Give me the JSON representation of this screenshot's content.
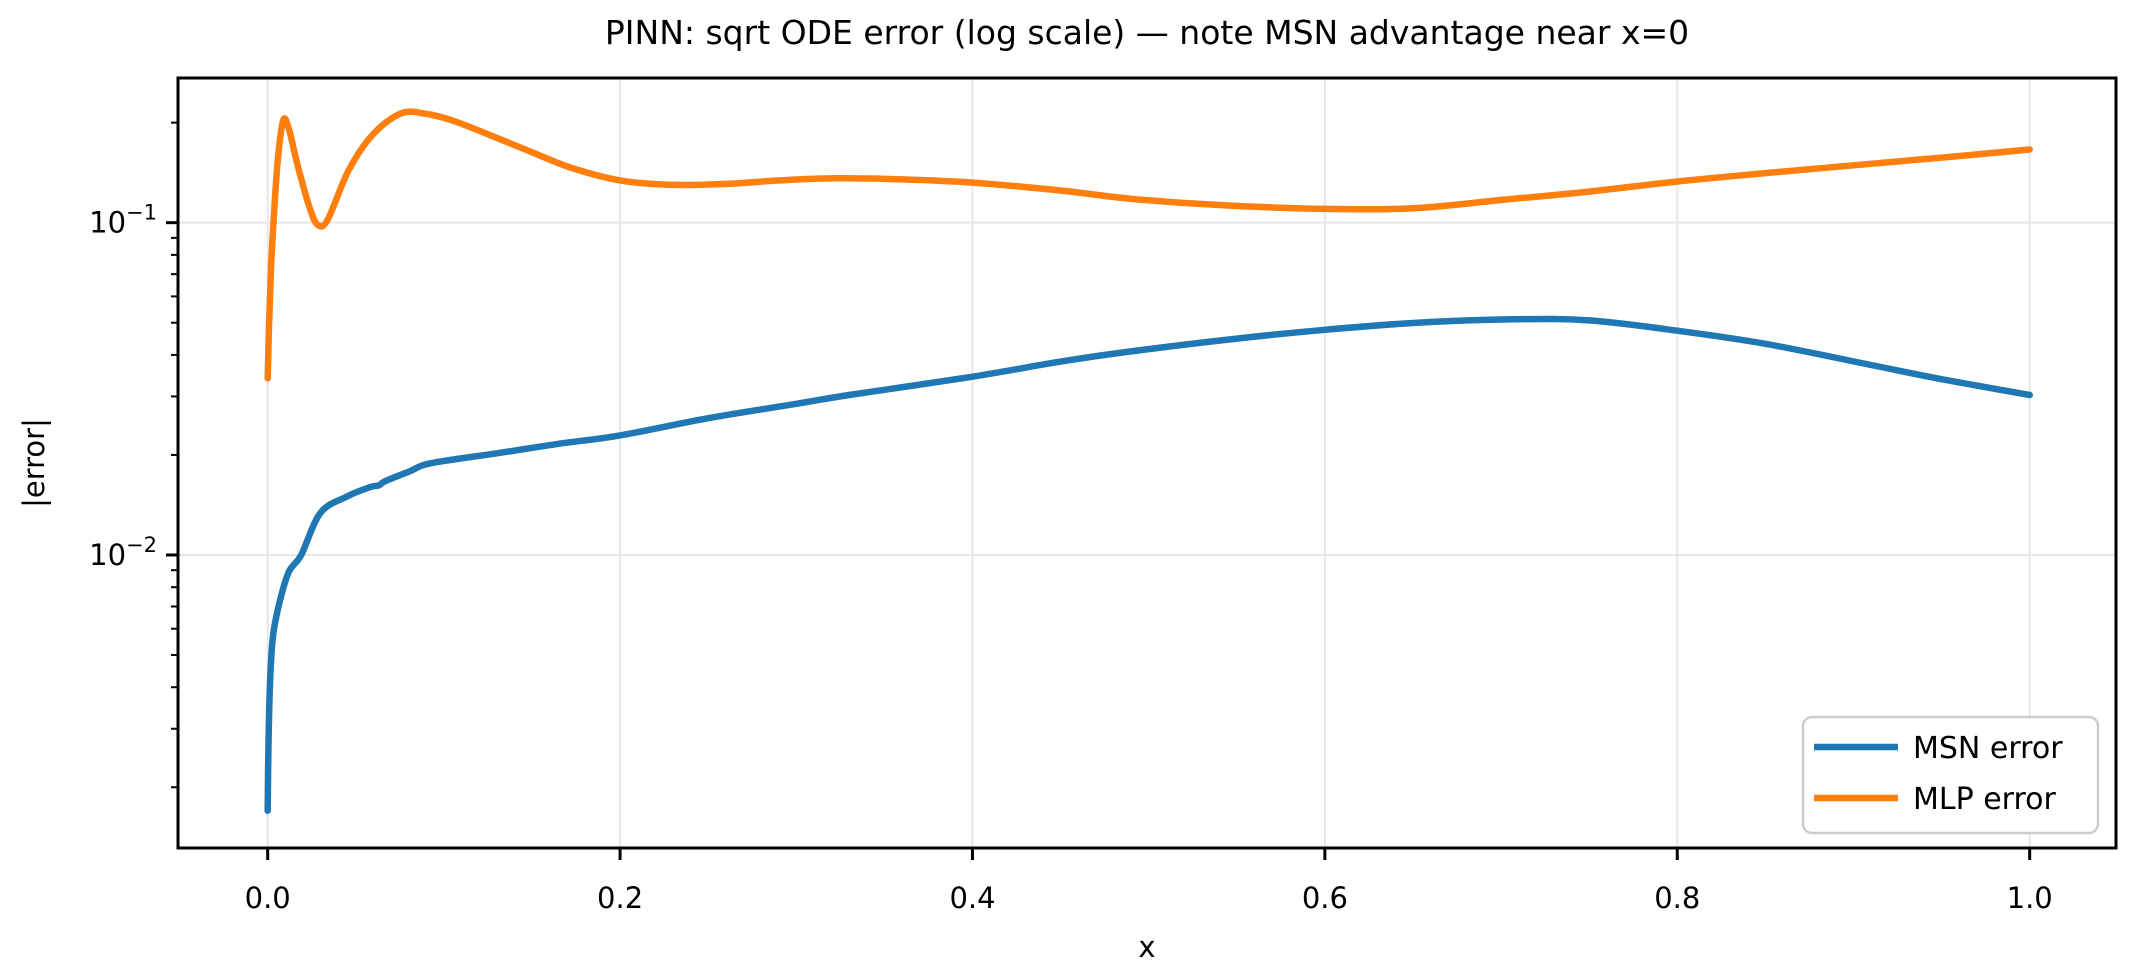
{
  "colors": {
    "background": "#ffffff",
    "grid": "#e7e7e7",
    "axis": "#000000",
    "legend_border": "#cccccc",
    "series_blue": "#1f77b4",
    "series_orange": "#ff7f0e"
  },
  "chart_data": {
    "type": "line",
    "title": "PINN: sqrt ODE error (log scale) — note MSN advantage near x=0",
    "xlabel": "x",
    "ylabel": "|error|",
    "grid": true,
    "y_scale": "log",
    "xlim": [
      -0.0509,
      1.049
    ],
    "ylim": [
      0.001313,
      0.2725
    ],
    "x_ticks": [
      0.0,
      0.2,
      0.4,
      0.6,
      0.8,
      1.0
    ],
    "x_tick_labels": [
      "0.0",
      "0.2",
      "0.4",
      "0.6",
      "0.8",
      "1.0"
    ],
    "y_major_ticks": [
      {
        "value": 0.1,
        "base": "10",
        "exp": "−1"
      },
      {
        "value": 0.01,
        "base": "10",
        "exp": "−2"
      }
    ],
    "y_minor_ticks": [
      0.2,
      0.09,
      0.08,
      0.07,
      0.06,
      0.05,
      0.04,
      0.03,
      0.02,
      0.009,
      0.008,
      0.007,
      0.006,
      0.005,
      0.004,
      0.003,
      0.002
    ],
    "legend": {
      "location": "lower right",
      "entries": [
        {
          "label": "MSN error",
          "color": "#1f77b4"
        },
        {
          "label": "MLP error",
          "color": "#ff7f0e"
        }
      ]
    },
    "series": [
      {
        "name": "MSN error",
        "color": "#1f77b4",
        "points": [
          [
            0.0,
            0.0017
          ],
          [
            0.0004,
            0.0026
          ],
          [
            0.0013,
            0.0041
          ],
          [
            0.003,
            0.0057
          ],
          [
            0.007,
            0.0073
          ],
          [
            0.012,
            0.0089
          ],
          [
            0.019,
            0.01
          ],
          [
            0.03,
            0.0134
          ],
          [
            0.045,
            0.015
          ],
          [
            0.058,
            0.016
          ],
          [
            0.063,
            0.0162
          ],
          [
            0.067,
            0.0167
          ],
          [
            0.08,
            0.0178
          ],
          [
            0.093,
            0.0189
          ],
          [
            0.132,
            0.0203
          ],
          [
            0.165,
            0.0216
          ],
          [
            0.2,
            0.0229
          ],
          [
            0.25,
            0.0258
          ],
          [
            0.3,
            0.0285
          ],
          [
            0.33,
            0.0303
          ],
          [
            0.4,
            0.0344
          ],
          [
            0.45,
            0.0382
          ],
          [
            0.49,
            0.041
          ],
          [
            0.55,
            0.0448
          ],
          [
            0.6,
            0.0476
          ],
          [
            0.65,
            0.0499
          ],
          [
            0.707,
            0.0512
          ],
          [
            0.75,
            0.0508
          ],
          [
            0.8,
            0.0473
          ],
          [
            0.85,
            0.0432
          ],
          [
            0.91,
            0.0373
          ],
          [
            0.95,
            0.0338
          ],
          [
            1.0,
            0.0303
          ]
        ]
      },
      {
        "name": "MLP error",
        "color": "#ff7f0e",
        "points": [
          [
            0.0,
            0.034
          ],
          [
            0.0008,
            0.05
          ],
          [
            0.002,
            0.075
          ],
          [
            0.004,
            0.115
          ],
          [
            0.006,
            0.16
          ],
          [
            0.0089,
            0.204
          ],
          [
            0.012,
            0.192
          ],
          [
            0.016,
            0.156
          ],
          [
            0.0193,
            0.134
          ],
          [
            0.024,
            0.11
          ],
          [
            0.0284,
            0.0985
          ],
          [
            0.034,
            0.102
          ],
          [
            0.046,
            0.144
          ],
          [
            0.06,
            0.185
          ],
          [
            0.076,
            0.2135
          ],
          [
            0.09,
            0.2125
          ],
          [
            0.106,
            0.202
          ],
          [
            0.13,
            0.18
          ],
          [
            0.15,
            0.163
          ],
          [
            0.172,
            0.1465
          ],
          [
            0.2,
            0.134
          ],
          [
            0.228,
            0.13
          ],
          [
            0.26,
            0.1308
          ],
          [
            0.29,
            0.134
          ],
          [
            0.322,
            0.136
          ],
          [
            0.36,
            0.135
          ],
          [
            0.4,
            0.132
          ],
          [
            0.45,
            0.125
          ],
          [
            0.49,
            0.118
          ],
          [
            0.54,
            0.113
          ],
          [
            0.6,
            0.11
          ],
          [
            0.65,
            0.1105
          ],
          [
            0.7,
            0.117
          ],
          [
            0.75,
            0.124
          ],
          [
            0.8,
            0.133
          ],
          [
            0.85,
            0.141
          ],
          [
            0.9,
            0.1488
          ],
          [
            0.95,
            0.157
          ],
          [
            1.0,
            0.166
          ]
        ]
      }
    ]
  }
}
